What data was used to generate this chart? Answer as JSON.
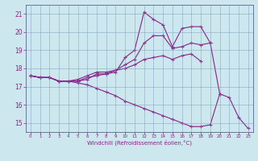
{
  "xlabel": "Windchill (Refroidissement éolien,°C)",
  "bg_color": "#cce8ee",
  "line_color": "#882288",
  "marker": "+",
  "markersize": 3,
  "linewidth": 0.8,
  "ylim": [
    14.5,
    21.5
  ],
  "xlim": [
    -0.5,
    23.5
  ],
  "yticks": [
    15,
    16,
    17,
    18,
    19,
    20,
    21
  ],
  "xticks": [
    0,
    1,
    2,
    3,
    4,
    5,
    6,
    7,
    8,
    9,
    10,
    11,
    12,
    13,
    14,
    15,
    16,
    17,
    18,
    19,
    20,
    21,
    22,
    23
  ],
  "series": [
    [
      17.6,
      17.5,
      17.5,
      17.3,
      17.3,
      17.3,
      17.4,
      17.7,
      17.7,
      17.8,
      18.6,
      19.0,
      21.1,
      20.7,
      20.4,
      19.2,
      20.2,
      20.3,
      20.3,
      19.4,
      16.6,
      null,
      null,
      null
    ],
    [
      17.6,
      17.5,
      17.5,
      17.3,
      17.3,
      17.3,
      17.5,
      17.6,
      17.7,
      17.9,
      18.2,
      18.5,
      19.4,
      19.8,
      19.8,
      19.1,
      19.2,
      19.4,
      19.3,
      19.4,
      null,
      null,
      null,
      null
    ],
    [
      17.6,
      17.5,
      17.5,
      17.3,
      17.3,
      17.4,
      17.6,
      17.8,
      17.8,
      17.9,
      18.0,
      18.2,
      18.5,
      18.6,
      18.7,
      18.5,
      18.7,
      18.8,
      18.4,
      null,
      null,
      null,
      null,
      null
    ],
    [
      17.6,
      17.5,
      17.5,
      17.3,
      17.3,
      17.2,
      17.1,
      16.9,
      16.7,
      16.5,
      16.2,
      16.0,
      15.8,
      15.6,
      15.4,
      15.2,
      15.0,
      14.8,
      14.8,
      14.9,
      16.6,
      16.4,
      15.3,
      14.7
    ]
  ]
}
